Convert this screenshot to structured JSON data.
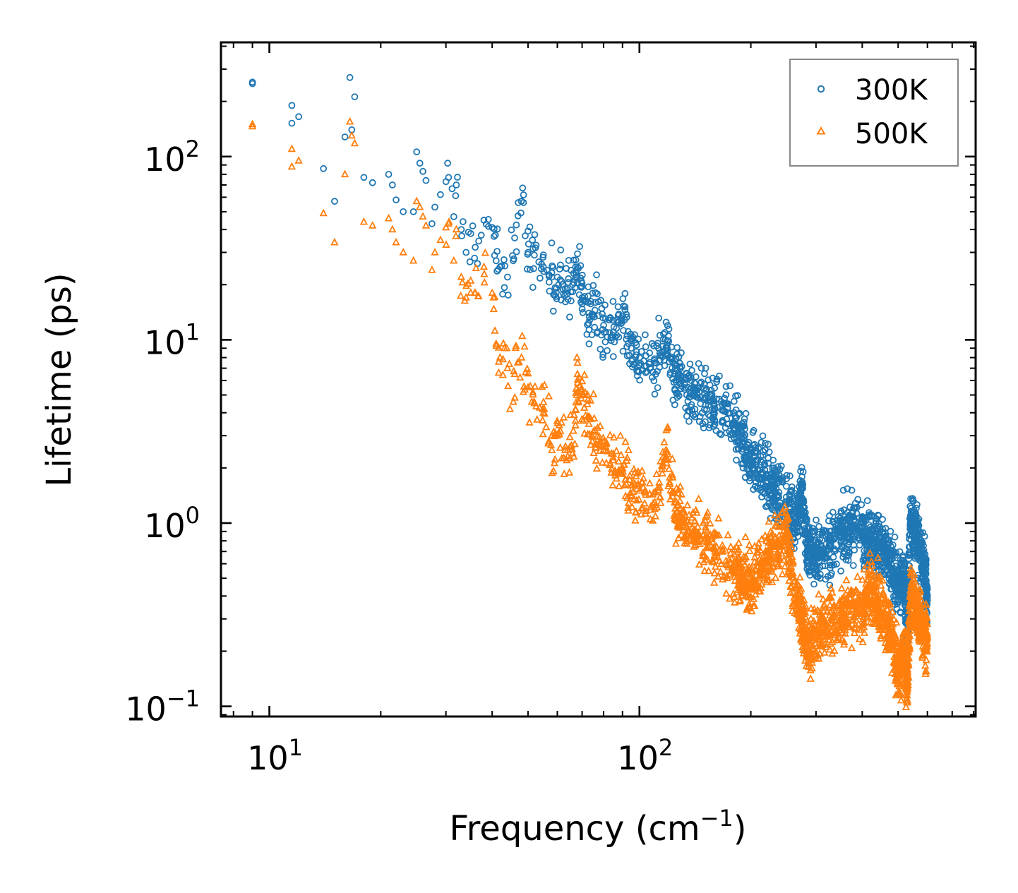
{
  "chart_data": {
    "type": "scatter",
    "title": "",
    "xlabel": "Frequency (cm",
    "xlabel_superscript": "−1",
    "xlabel_suffix": ")",
    "ylabel": "Lifetime (ps)",
    "xscale": "log",
    "yscale": "log",
    "xlim": [
      7.4,
      810
    ],
    "ylim": [
      0.088,
      420
    ],
    "x_ticks": [
      {
        "value": 10,
        "base": "10",
        "exp": "1"
      },
      {
        "value": 100,
        "base": "10",
        "exp": "2"
      }
    ],
    "y_ticks": [
      {
        "value": 0.1,
        "base": "10",
        "exp": "−1"
      },
      {
        "value": 1,
        "base": "10",
        "exp": "0"
      },
      {
        "value": 10,
        "base": "10",
        "exp": "1"
      },
      {
        "value": 100,
        "base": "10",
        "exp": "2"
      }
    ],
    "legend_position": "top-right",
    "series": [
      {
        "name": "300K",
        "marker": "circle",
        "color": "#1f77b4",
        "points": [
          [
            9.0,
            255
          ],
          [
            9.0,
            250
          ],
          [
            11.5,
            190
          ],
          [
            11.5,
            152
          ],
          [
            12.0,
            165
          ],
          [
            14.0,
            86
          ],
          [
            15.0,
            57
          ],
          [
            16.0,
            128
          ],
          [
            16.5,
            270
          ],
          [
            16.7,
            140
          ],
          [
            17.0,
            212
          ],
          [
            18.0,
            77
          ],
          [
            19.0,
            72
          ],
          [
            21.0,
            80
          ],
          [
            21.5,
            70
          ],
          [
            22.0,
            58
          ],
          [
            23.0,
            50
          ],
          [
            24.5,
            50
          ],
          [
            25.0,
            106
          ],
          [
            25.5,
            92
          ],
          [
            26.0,
            83
          ],
          [
            26.5,
            74
          ],
          [
            27.5,
            43
          ],
          [
            28.0,
            53
          ],
          [
            29.0,
            62
          ],
          [
            30.0,
            73
          ],
          [
            30.5,
            77
          ],
          [
            31.5,
            47
          ],
          [
            32.0,
            70
          ],
          [
            33.0,
            40
          ],
          [
            34.0,
            30
          ],
          [
            35.0,
            38
          ],
          [
            36.0,
            32
          ],
          [
            38.0,
            45
          ],
          [
            40.0,
            41
          ],
          [
            41.0,
            27
          ],
          [
            42.0,
            25
          ],
          [
            44.0,
            22
          ],
          [
            46.0,
            36
          ],
          [
            48.0,
            57
          ],
          [
            50.0,
            30
          ],
          [
            52.0,
            29
          ],
          [
            55.0,
            25
          ],
          [
            58.0,
            22
          ],
          [
            60.0,
            22
          ],
          [
            63.0,
            19
          ],
          [
            66.0,
            20
          ],
          [
            68.0,
            25
          ],
          [
            70.0,
            17
          ],
          [
            73.0,
            14
          ],
          [
            76.0,
            16
          ],
          [
            80.0,
            12
          ],
          [
            85.0,
            11
          ],
          [
            90.0,
            13.5
          ],
          [
            95.0,
            9
          ],
          [
            100.0,
            8
          ],
          [
            110.0,
            7.5
          ],
          [
            118.0,
            9.1
          ],
          [
            125.0,
            7
          ],
          [
            130.0,
            6
          ],
          [
            140.0,
            5
          ],
          [
            150.0,
            4.8
          ],
          [
            160.0,
            4.2
          ],
          [
            180.0,
            3.5
          ],
          [
            190.0,
            2.7
          ],
          [
            200.0,
            2.2
          ],
          [
            215.0,
            1.9
          ],
          [
            230.0,
            1.55
          ],
          [
            250.0,
            1.3
          ],
          [
            265.0,
            1.0
          ],
          [
            275.0,
            1.55
          ],
          [
            285.0,
            0.7
          ],
          [
            300.0,
            0.68
          ],
          [
            320.0,
            0.72
          ],
          [
            350.0,
            0.85
          ],
          [
            370.0,
            0.95
          ],
          [
            400.0,
            0.9
          ],
          [
            420.0,
            0.82
          ],
          [
            440.0,
            0.78
          ],
          [
            460.0,
            0.7
          ],
          [
            480.0,
            0.55
          ],
          [
            500.0,
            0.45
          ],
          [
            520.0,
            0.5
          ],
          [
            530.0,
            0.24
          ],
          [
            540.0,
            1.08
          ],
          [
            555.0,
            0.92
          ],
          [
            570.0,
            0.75
          ],
          [
            590.0,
            0.55
          ],
          [
            600.0,
            0.38
          ]
        ]
      },
      {
        "name": "500K",
        "marker": "triangle",
        "color": "#ff7f0e",
        "points": [
          [
            9.0,
            150
          ],
          [
            9.0,
            146
          ],
          [
            11.5,
            110
          ],
          [
            11.5,
            88
          ],
          [
            12.0,
            95
          ],
          [
            14.0,
            49
          ],
          [
            15.0,
            34
          ],
          [
            16.0,
            80
          ],
          [
            16.5,
            155
          ],
          [
            16.7,
            130
          ],
          [
            17.0,
            118
          ],
          [
            18.0,
            44
          ],
          [
            19.0,
            42
          ],
          [
            21.0,
            46
          ],
          [
            21.5,
            40
          ],
          [
            22.0,
            34
          ],
          [
            23.0,
            30
          ],
          [
            24.5,
            27
          ],
          [
            25.0,
            57
          ],
          [
            25.5,
            53
          ],
          [
            26.0,
            47
          ],
          [
            26.5,
            42
          ],
          [
            27.5,
            24
          ],
          [
            28.0,
            30
          ],
          [
            29.0,
            35
          ],
          [
            30.0,
            41
          ],
          [
            30.5,
            43
          ],
          [
            31.5,
            27
          ],
          [
            32.0,
            40
          ],
          [
            33.0,
            22
          ],
          [
            34.0,
            17
          ],
          [
            35.0,
            21
          ],
          [
            36.0,
            18
          ],
          [
            38.0,
            25
          ],
          [
            40.0,
            18
          ],
          [
            41.0,
            9.5
          ],
          [
            42.0,
            8
          ],
          [
            44.0,
            7
          ],
          [
            46.0,
            6.5
          ],
          [
            48.0,
            8
          ],
          [
            50.0,
            5.5
          ],
          [
            52.0,
            4.5
          ],
          [
            55.0,
            4
          ],
          [
            58.0,
            2.5
          ],
          [
            60.0,
            3
          ],
          [
            63.0,
            2.5
          ],
          [
            66.0,
            2.4
          ],
          [
            68.0,
            6.5
          ],
          [
            70.0,
            5
          ],
          [
            73.0,
            3.8
          ],
          [
            76.0,
            2.7
          ],
          [
            80.0,
            2.5
          ],
          [
            85.0,
            2.2
          ],
          [
            90.0,
            2
          ],
          [
            95.0,
            1.6
          ],
          [
            100.0,
            1.5
          ],
          [
            110.0,
            1.3
          ],
          [
            118.0,
            2.5
          ],
          [
            125.0,
            1.2
          ],
          [
            130.0,
            1.0
          ],
          [
            140.0,
            0.9
          ],
          [
            150.0,
            0.8
          ],
          [
            160.0,
            0.7
          ],
          [
            180.0,
            0.55
          ],
          [
            190.0,
            0.5
          ],
          [
            200.0,
            0.45
          ],
          [
            215.0,
            0.6
          ],
          [
            230.0,
            0.75
          ],
          [
            250.0,
            0.85
          ],
          [
            265.0,
            0.4
          ],
          [
            275.0,
            0.3
          ],
          [
            285.0,
            0.2
          ],
          [
            300.0,
            0.25
          ],
          [
            320.0,
            0.28
          ],
          [
            350.0,
            0.3
          ],
          [
            370.0,
            0.35
          ],
          [
            400.0,
            0.33
          ],
          [
            420.0,
            0.45
          ],
          [
            440.0,
            0.38
          ],
          [
            460.0,
            0.3
          ],
          [
            480.0,
            0.25
          ],
          [
            500.0,
            0.14
          ],
          [
            520.0,
            0.2
          ],
          [
            530.0,
            0.13
          ],
          [
            540.0,
            0.4
          ],
          [
            555.0,
            0.35
          ],
          [
            570.0,
            0.3
          ],
          [
            590.0,
            0.25
          ],
          [
            600.0,
            0.22
          ]
        ]
      }
    ]
  }
}
